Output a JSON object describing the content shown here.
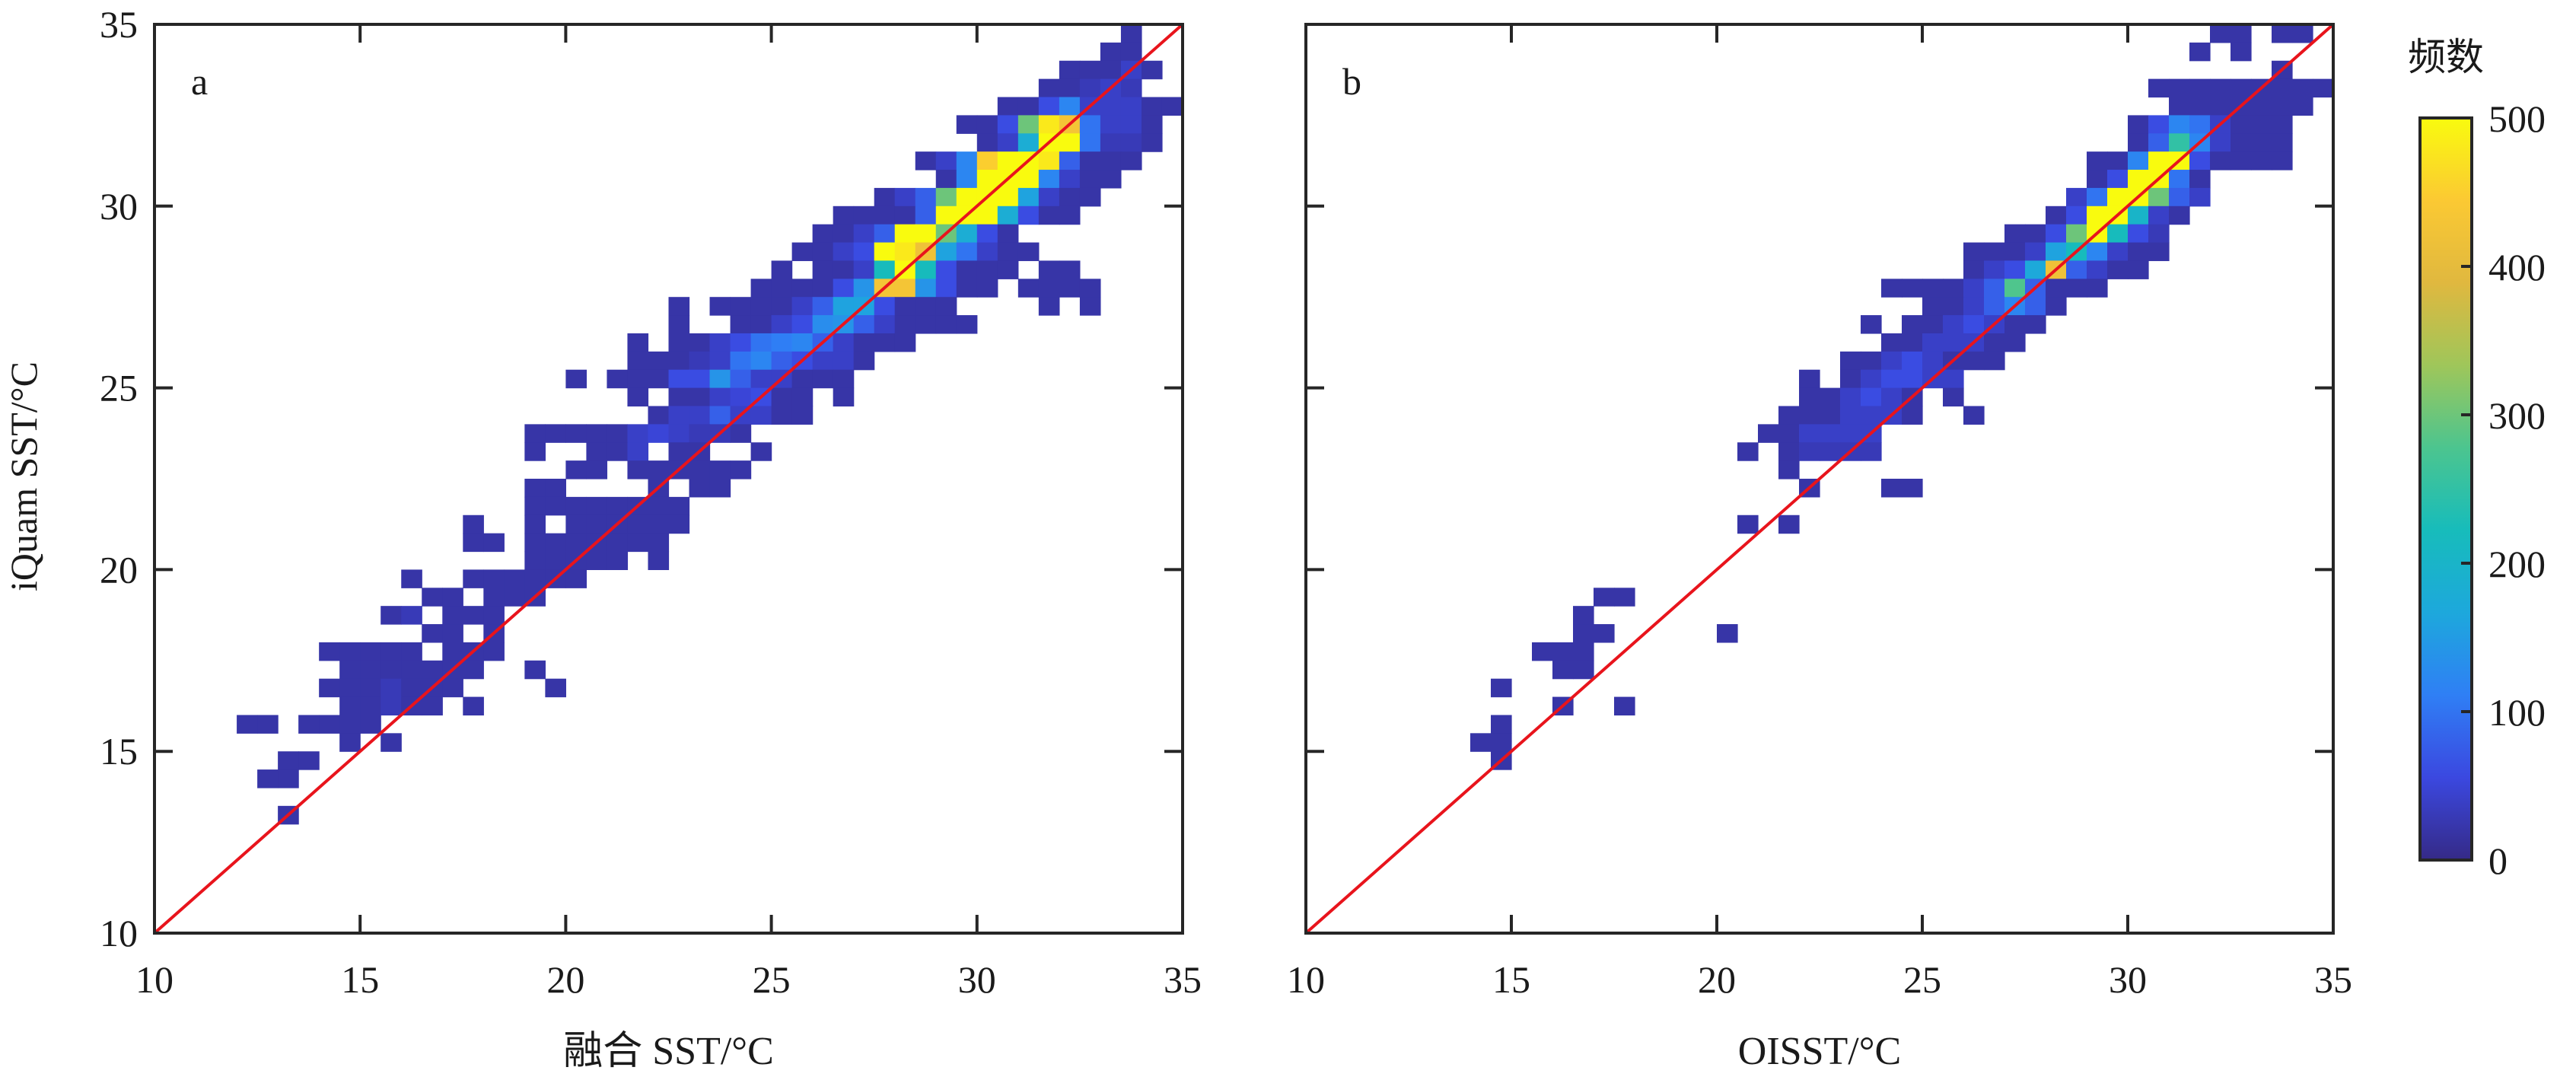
{
  "chart_data": [
    {
      "type": "heatmap",
      "panel_label": "a",
      "xlabel": "融合 SST/°C",
      "ylabel": "iQuam SST/°C",
      "xlim": [
        10,
        35
      ],
      "ylim": [
        10,
        35
      ],
      "xticks": [
        "10",
        "15",
        "20",
        "25",
        "30",
        "35"
      ],
      "yticks": [
        "10",
        "15",
        "20",
        "25",
        "30",
        "35"
      ],
      "bin_size": 0.5,
      "reference_line": {
        "type": "1:1",
        "color": "#e8141c"
      },
      "rows": [
        {
          "y": 34.5,
          "x0": 33.5,
          "counts": [
            20
          ]
        },
        {
          "y": 34,
          "x0": 33,
          "counts": [
            20,
            20
          ]
        },
        {
          "y": 33.5,
          "x0": 32,
          "counts": [
            20,
            20,
            20,
            40,
            20
          ]
        },
        {
          "y": 33,
          "x0": 31.5,
          "counts": [
            20,
            20,
            30,
            40,
            30
          ]
        },
        {
          "y": 32.5,
          "x0": 30.5,
          "counts": [
            20,
            20,
            60,
            120,
            40,
            40,
            40,
            20,
            20
          ]
        },
        {
          "y": 32,
          "x0": 29.5,
          "counts": [
            20,
            20,
            60,
            300,
            480,
            430,
            100,
            40,
            40,
            20
          ]
        },
        {
          "y": 31.5,
          "x0": 30,
          "counts": [
            20,
            40,
            180,
            500,
            500,
            100,
            30,
            30,
            20
          ]
        },
        {
          "y": 31,
          "x0": 28.5,
          "counts": [
            20,
            40,
            120,
            450,
            500,
            500,
            480,
            80,
            20,
            20,
            20
          ]
        },
        {
          "y": 30.5,
          "x0": 29,
          "counts": [
            20,
            120,
            500,
            500,
            500,
            120,
            40,
            20,
            20
          ]
        },
        {
          "y": 30,
          "x0": 27.5,
          "counts": [
            20,
            40,
            80,
            300,
            500,
            500,
            500,
            160,
            40,
            20,
            20
          ]
        },
        {
          "y": 29.5,
          "x0": 26.5,
          "counts": [
            20,
            20,
            20,
            20,
            80,
            500,
            500,
            500,
            180,
            60,
            20,
            20
          ]
        },
        {
          "y": 29,
          "x0": 26,
          "counts": [
            20,
            20,
            40,
            80,
            500,
            500,
            300,
            180,
            60,
            20
          ]
        },
        {
          "y": 28.5,
          "x0": 25.5,
          "counts": [
            20,
            20,
            40,
            60,
            500,
            480,
            420,
            160,
            100,
            40,
            20,
            20
          ]
        },
        {
          "y": 28,
          "x0": 25,
          "counts": [
            20,
            0,
            20,
            20,
            40,
            220,
            500,
            220,
            60,
            20,
            20,
            20,
            0,
            20,
            20
          ]
        },
        {
          "y": 27.5,
          "x0": 24.5,
          "counts": [
            20,
            20,
            20,
            20,
            60,
            140,
            430,
            430,
            140,
            60,
            20,
            20,
            0,
            20,
            20,
            20,
            20
          ]
        },
        {
          "y": 27,
          "x0": 22.5,
          "counts": [
            20,
            0,
            20,
            20,
            20,
            20,
            40,
            80,
            160,
            160,
            60,
            20,
            20,
            20,
            0,
            0,
            0,
            0,
            20,
            0,
            20
          ]
        },
        {
          "y": 26.5,
          "x0": 22.5,
          "counts": [
            20,
            0,
            0,
            20,
            20,
            40,
            60,
            130,
            140,
            80,
            40,
            20,
            20,
            20,
            20
          ]
        },
        {
          "y": 26,
          "x0": 21.5,
          "counts": [
            20,
            0,
            20,
            20,
            40,
            60,
            100,
            110,
            120,
            80,
            40,
            20,
            20,
            20
          ]
        },
        {
          "y": 25.5,
          "x0": 21.5,
          "counts": [
            20,
            20,
            20,
            30,
            40,
            100,
            120,
            80,
            60,
            40,
            40,
            20
          ]
        },
        {
          "y": 25,
          "x0": 20,
          "counts": [
            20,
            0,
            20,
            20,
            20,
            60,
            60,
            140,
            80,
            40,
            40,
            20,
            20,
            20
          ]
        },
        {
          "y": 24.5,
          "x0": 21.5,
          "counts": [
            20,
            0,
            20,
            20,
            40,
            50,
            60,
            20,
            20,
            0,
            20
          ]
        },
        {
          "y": 24,
          "x0": 22,
          "counts": [
            20,
            40,
            40,
            80,
            40,
            40,
            20,
            20
          ]
        },
        {
          "y": 23.5,
          "x0": 19,
          "counts": [
            20,
            20,
            20,
            20,
            20,
            40,
            50,
            40,
            30,
            30,
            20
          ]
        },
        {
          "y": 23,
          "x0": 19,
          "counts": [
            20,
            0,
            0,
            20,
            20,
            40,
            0,
            20,
            20,
            0,
            0,
            20
          ]
        },
        {
          "y": 22.5,
          "x0": 20,
          "counts": [
            20,
            20,
            0,
            20,
            20,
            20,
            20,
            20,
            20
          ]
        },
        {
          "y": 22,
          "x0": 19,
          "counts": [
            20,
            20,
            0,
            0,
            0,
            0,
            20,
            0,
            20,
            20
          ]
        },
        {
          "y": 21.5,
          "x0": 19,
          "counts": [
            20,
            20,
            20,
            20,
            20,
            20,
            20,
            20
          ]
        },
        {
          "y": 21,
          "x0": 17.5,
          "counts": [
            20,
            0,
            0,
            20,
            0,
            20,
            20,
            20,
            20,
            20,
            20
          ]
        },
        {
          "y": 20.5,
          "x0": 17.5,
          "counts": [
            20,
            20,
            0,
            20,
            20,
            20,
            20,
            20,
            20,
            20
          ]
        },
        {
          "y": 20,
          "x0": 19,
          "counts": [
            20,
            20,
            20,
            20,
            20,
            0,
            20
          ]
        },
        {
          "y": 19.5,
          "x0": 16,
          "counts": [
            20,
            0,
            0,
            20,
            20,
            20,
            20,
            20,
            20
          ]
        },
        {
          "y": 19,
          "x0": 16.5,
          "counts": [
            20,
            20,
            0,
            20,
            20,
            20
          ]
        },
        {
          "y": 18.5,
          "x0": 15.5,
          "counts": [
            20,
            30,
            0,
            20,
            20,
            20
          ]
        },
        {
          "y": 18,
          "x0": 16.5,
          "counts": [
            20,
            20,
            0,
            20
          ]
        },
        {
          "y": 17.5,
          "x0": 14,
          "counts": [
            20,
            20,
            20,
            20,
            20,
            0,
            20,
            20,
            20
          ]
        },
        {
          "y": 17,
          "x0": 14.5,
          "counts": [
            20,
            20,
            20,
            20,
            20,
            20,
            20,
            0,
            0,
            20
          ]
        },
        {
          "y": 16.5,
          "x0": 14,
          "counts": [
            20,
            20,
            20,
            30,
            20,
            20,
            20,
            0,
            0,
            0,
            0,
            20
          ]
        },
        {
          "y": 16,
          "x0": 14.5,
          "counts": [
            20,
            20,
            30,
            20,
            20,
            0,
            20
          ]
        },
        {
          "y": 15.5,
          "x0": 12,
          "counts": [
            20,
            20,
            0,
            20,
            20,
            20,
            20
          ]
        },
        {
          "y": 15,
          "x0": 14.5,
          "counts": [
            20,
            0,
            20
          ]
        },
        {
          "y": 14.5,
          "x0": 13,
          "counts": [
            20,
            20
          ]
        },
        {
          "y": 14,
          "x0": 12.5,
          "counts": [
            20,
            20
          ]
        },
        {
          "y": 13,
          "x0": 13,
          "counts": [
            20
          ]
        }
      ]
    },
    {
      "type": "heatmap",
      "panel_label": "b",
      "xlabel": "OISST/°C",
      "xlim": [
        10,
        35
      ],
      "ylim": [
        10,
        35
      ],
      "xticks": [
        "10",
        "15",
        "20",
        "25",
        "30",
        "35"
      ],
      "bin_size": 0.5,
      "reference_line": {
        "type": "1:1",
        "color": "#e8141c"
      },
      "rows": [
        {
          "y": 34.5,
          "x0": 32,
          "counts": [
            20,
            20,
            0,
            20,
            20
          ]
        },
        {
          "y": 34,
          "x0": 31.5,
          "counts": [
            20,
            0,
            20
          ]
        },
        {
          "y": 33.5,
          "x0": 33.5,
          "counts": [
            20
          ]
        },
        {
          "y": 33,
          "x0": 30.5,
          "counts": [
            20,
            20,
            20,
            20,
            20,
            20,
            20,
            20,
            20
          ]
        },
        {
          "y": 32.5,
          "x0": 31,
          "counts": [
            20,
            20,
            20,
            20,
            20,
            20,
            20
          ]
        },
        {
          "y": 32,
          "x0": 30,
          "counts": [
            20,
            60,
            120,
            100,
            40,
            20,
            20,
            20
          ]
        },
        {
          "y": 31.5,
          "x0": 30,
          "counts": [
            20,
            80,
            250,
            120,
            40,
            20,
            20,
            20
          ]
        },
        {
          "y": 31,
          "x0": 29,
          "counts": [
            20,
            20,
            120,
            500,
            500,
            60,
            20,
            20,
            20,
            20
          ]
        },
        {
          "y": 30.5,
          "x0": 29,
          "counts": [
            20,
            60,
            500,
            500,
            100,
            20
          ]
        },
        {
          "y": 30,
          "x0": 28.5,
          "counts": [
            40,
            100,
            500,
            500,
            300,
            80,
            40
          ]
        },
        {
          "y": 29.5,
          "x0": 28,
          "counts": [
            20,
            60,
            500,
            500,
            200,
            40,
            20
          ]
        },
        {
          "y": 29,
          "x0": 27,
          "counts": [
            20,
            20,
            60,
            300,
            500,
            220,
            60,
            30
          ]
        },
        {
          "y": 28.5,
          "x0": 26,
          "counts": [
            20,
            20,
            20,
            40,
            160,
            220,
            120,
            40,
            20,
            20
          ]
        },
        {
          "y": 28,
          "x0": 26,
          "counts": [
            20,
            40,
            60,
            170,
            420,
            80,
            40,
            20,
            20
          ]
        },
        {
          "y": 27.5,
          "x0": 24,
          "counts": [
            20,
            20,
            20,
            20,
            40,
            80,
            280,
            80,
            20,
            20,
            20
          ]
        },
        {
          "y": 27,
          "x0": 25,
          "counts": [
            20,
            20,
            40,
            80,
            120,
            80,
            20
          ]
        },
        {
          "y": 26.5,
          "x0": 23.5,
          "counts": [
            20,
            0,
            20,
            20,
            40,
            60,
            40,
            20,
            20
          ]
        },
        {
          "y": 26,
          "x0": 24,
          "counts": [
            20,
            20,
            40,
            40,
            40,
            20,
            20
          ]
        },
        {
          "y": 25.5,
          "x0": 23,
          "counts": [
            20,
            20,
            40,
            60,
            40,
            20,
            20,
            20
          ]
        },
        {
          "y": 25,
          "x0": 22,
          "counts": [
            20,
            0,
            20,
            40,
            60,
            60,
            40,
            40
          ]
        },
        {
          "y": 24.5,
          "x0": 22,
          "counts": [
            20,
            20,
            40,
            60,
            40,
            20,
            0,
            20
          ]
        },
        {
          "y": 24,
          "x0": 21.5,
          "counts": [
            20,
            20,
            20,
            40,
            40,
            40,
            20,
            0,
            0,
            20
          ]
        },
        {
          "y": 23.5,
          "x0": 21,
          "counts": [
            20,
            20,
            40,
            40,
            40,
            40
          ]
        },
        {
          "y": 23,
          "x0": 20.5,
          "counts": [
            20,
            0,
            20,
            30,
            30,
            30,
            30
          ]
        },
        {
          "y": 22.5,
          "x0": 21.5,
          "counts": [
            20
          ]
        },
        {
          "y": 22,
          "x0": 22,
          "counts": [
            20,
            0,
            0,
            0,
            20,
            20
          ]
        },
        {
          "y": 21,
          "x0": 20.5,
          "counts": [
            20,
            0,
            20
          ]
        },
        {
          "y": 19,
          "x0": 17,
          "counts": [
            20,
            20
          ]
        },
        {
          "y": 18.5,
          "x0": 16.5,
          "counts": [
            20
          ]
        },
        {
          "y": 18,
          "x0": 16.5,
          "counts": [
            20,
            20,
            0,
            0,
            0,
            0,
            0,
            20
          ]
        },
        {
          "y": 17.5,
          "x0": 15.5,
          "counts": [
            20,
            20,
            20
          ]
        },
        {
          "y": 17,
          "x0": 16,
          "counts": [
            20,
            20
          ]
        },
        {
          "y": 16.5,
          "x0": 14.5,
          "counts": [
            20
          ]
        },
        {
          "y": 16,
          "x0": 16,
          "counts": [
            20,
            0,
            0,
            20
          ]
        },
        {
          "y": 15.5,
          "x0": 14.5,
          "counts": [
            20
          ]
        },
        {
          "y": 15,
          "x0": 14,
          "counts": [
            20,
            20
          ]
        },
        {
          "y": 14.5,
          "x0": 14.5,
          "counts": [
            20
          ]
        }
      ]
    }
  ],
  "colorbar": {
    "title": "频数",
    "range": [
      0,
      500
    ],
    "ticks": [
      "0",
      "100",
      "200",
      "300",
      "400",
      "500"
    ],
    "colormap": [
      "#352a87",
      "#3b48e0",
      "#2f7ff5",
      "#1da8dc",
      "#17bcbb",
      "#4cc58f",
      "#9fc65a",
      "#e0b83f",
      "#fbc933",
      "#f9fb0e"
    ]
  }
}
